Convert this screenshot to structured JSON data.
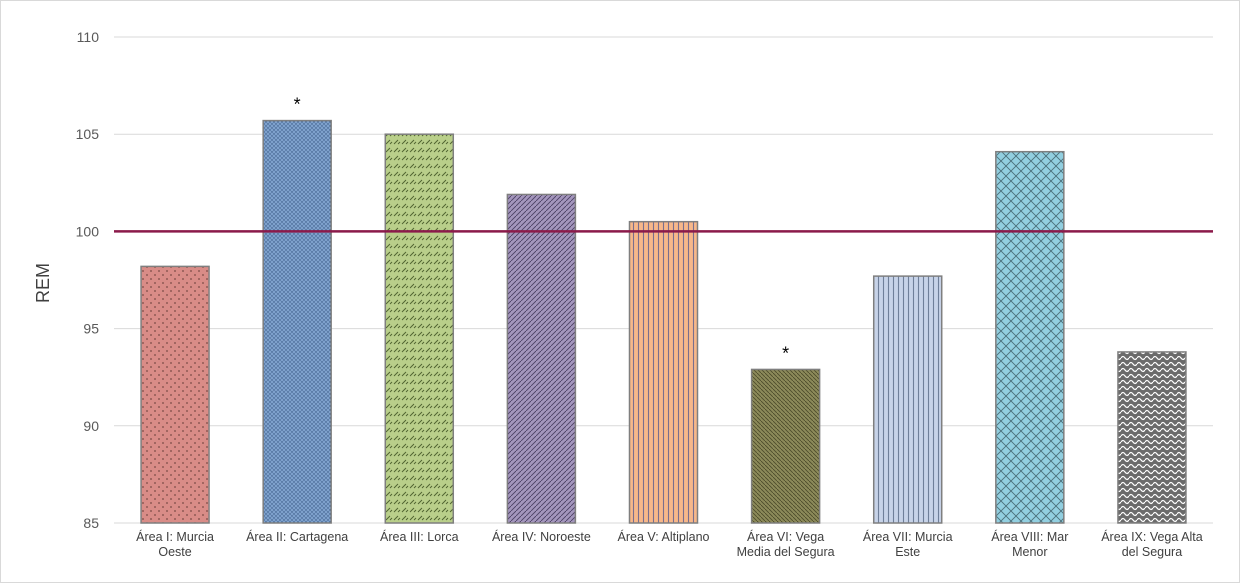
{
  "chart_data": {
    "type": "bar",
    "ylabel": "REM",
    "xlabel": "",
    "ylim": [
      85,
      110
    ],
    "yticks": [
      85,
      90,
      95,
      100,
      105,
      110
    ],
    "grid": true,
    "legend": "none",
    "reference_line": {
      "value": 100,
      "color": "#8b1a4a"
    },
    "categories": [
      [
        "Área I: Murcia",
        "Oeste"
      ],
      [
        "Área II: Cartagena"
      ],
      [
        "Área III: Lorca"
      ],
      [
        "Área IV: Noroeste"
      ],
      [
        "Área V: Altiplano"
      ],
      [
        "Área VI: Vega",
        "Media del Segura"
      ],
      [
        "Área VII: Murcia",
        "Este"
      ],
      [
        "Área VIII: Mar",
        "Menor"
      ],
      [
        "Área IX: Vega Alta",
        "del Segura"
      ]
    ],
    "values": [
      98.2,
      105.7,
      105.0,
      101.9,
      100.5,
      92.9,
      97.7,
      104.1,
      93.8
    ],
    "significance_marks": [
      "",
      "*",
      "",
      "",
      "",
      "*",
      "",
      "",
      ""
    ],
    "bar_styles": [
      {
        "fill": "#d98c87",
        "dot": "#7a4a46",
        "pattern": "dots-sparse"
      },
      {
        "fill": "#7ea1cc",
        "dot": "#2f4f7a",
        "pattern": "dots-dense"
      },
      {
        "fill": "#b9cf8a",
        "dot": "#4f6330",
        "pattern": "dashes"
      },
      {
        "fill": "#a496bd",
        "dot": "#4b3f63",
        "pattern": "diagonal"
      },
      {
        "fill": "#f7b78a",
        "dot": "#7a6e8e",
        "pattern": "vertical"
      },
      {
        "fill": "#8c8a5a",
        "dot": "#4d4c2b",
        "pattern": "diagonal-dense"
      },
      {
        "fill": "#c7d3e8",
        "dot": "#6f7f99",
        "pattern": "vertical"
      },
      {
        "fill": "#92cfe0",
        "dot": "#4a6f7a",
        "pattern": "diamond"
      },
      {
        "fill": "#6b6b6b",
        "dot": "#ffffff",
        "pattern": "wave"
      }
    ]
  }
}
